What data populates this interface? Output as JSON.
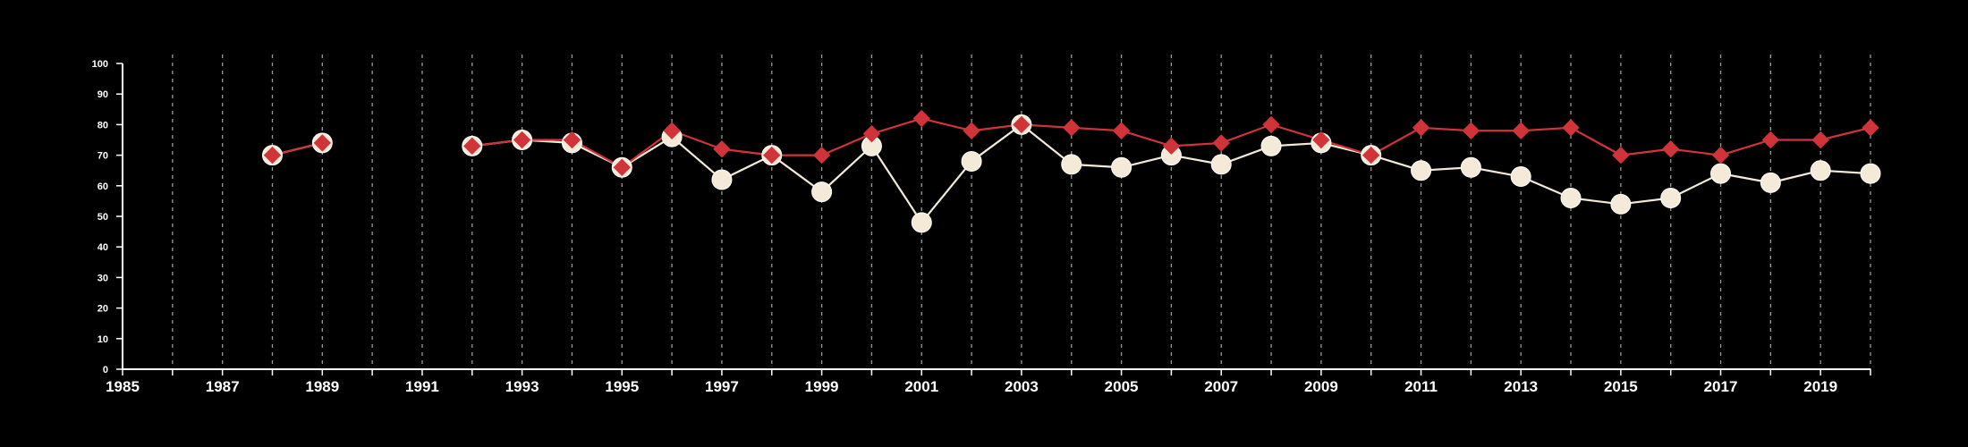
{
  "chart_data": {
    "type": "line",
    "xlim": [
      1985,
      2020
    ],
    "ylim": [
      0,
      100
    ],
    "y_ticks": [
      0,
      10,
      20,
      30,
      40,
      50,
      60,
      70,
      80,
      90,
      100
    ],
    "x_tick_labels": [
      1985,
      1987,
      1989,
      1991,
      1993,
      1995,
      1997,
      1999,
      2001,
      2003,
      2005,
      2007,
      2009,
      2011,
      2013,
      2015,
      2017,
      2019
    ],
    "grid": {
      "vertical_dashed": true,
      "horizontal": false
    },
    "x": [
      1985,
      1986,
      1987,
      1988,
      1989,
      1990,
      1991,
      1992,
      1993,
      1994,
      1995,
      1996,
      1997,
      1998,
      1999,
      2000,
      2001,
      2002,
      2003,
      2004,
      2005,
      2006,
      2007,
      2008,
      2009,
      2010,
      2011,
      2012,
      2013,
      2014,
      2015,
      2016,
      2017,
      2018,
      2019,
      2020
    ],
    "series": [
      {
        "marker": "circle",
        "color": "#f5ead8",
        "values": [
          null,
          null,
          null,
          70,
          74,
          null,
          null,
          73,
          75,
          74,
          66,
          76,
          62,
          70,
          58,
          73,
          48,
          68,
          80,
          67,
          66,
          70,
          67,
          73,
          74,
          70,
          65,
          66,
          63,
          56,
          54,
          56,
          64,
          61,
          65,
          64
        ]
      },
      {
        "marker": "diamond",
        "color": "#d13438",
        "values": [
          null,
          null,
          null,
          70,
          74,
          null,
          null,
          73,
          75,
          75,
          66,
          78,
          72,
          70,
          70,
          77,
          82,
          78,
          80,
          79,
          78,
          73,
          74,
          80,
          75,
          70,
          79,
          78,
          78,
          79,
          70,
          72,
          70,
          75,
          75,
          79
        ]
      }
    ]
  }
}
